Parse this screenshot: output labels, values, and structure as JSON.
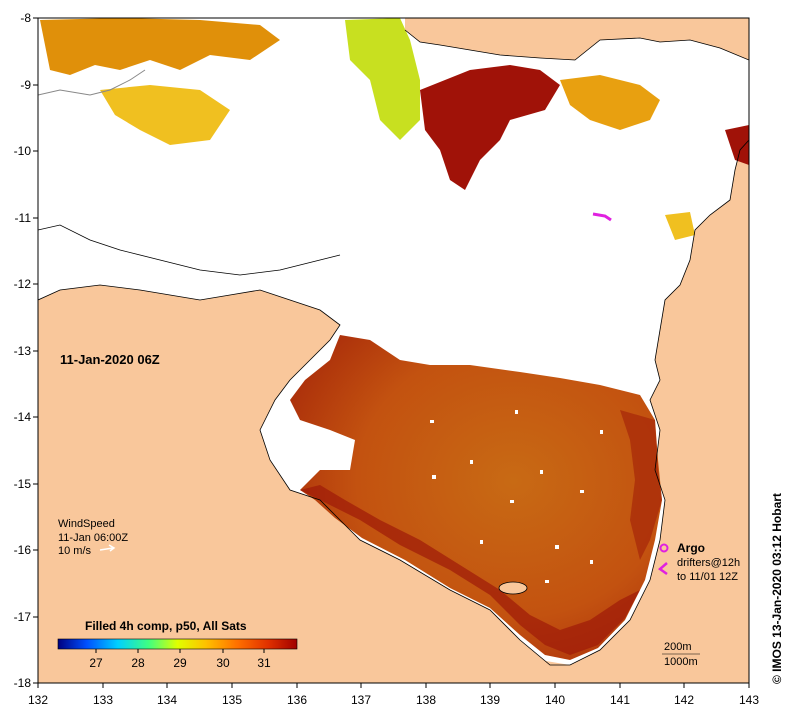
{
  "map": {
    "date_label": "11-Jan-2020 06Z",
    "credit": "© IMOS 13-Jan-2020 03:12 Hobart",
    "lon_ticks": [
      "132",
      "133",
      "134",
      "135",
      "136",
      "137",
      "138",
      "139",
      "140",
      "141",
      "142",
      "143"
    ],
    "lat_ticks": [
      "-8",
      "-9",
      "-10",
      "-11",
      "-12",
      "-13",
      "-14",
      "-15",
      "-16",
      "-17",
      "-18"
    ],
    "colors": {
      "land": "#f9c79b",
      "no_data": "#ffffff",
      "warm_sst": "#c8560a",
      "hot_sst": "#a01208",
      "argo": "#e020e0"
    }
  },
  "wind": {
    "title": "WindSpeed",
    "time": "11-Jan 06:00Z",
    "scale": "10 m/s"
  },
  "argo": {
    "title": "Argo",
    "drifters_line1": "drifters@12h",
    "drifters_line2": "to 11/01 12Z"
  },
  "colorbar": {
    "title": "Filled 4h comp, p50, All Sats",
    "ticks": [
      "27",
      "28",
      "29",
      "30",
      "31"
    ],
    "stops": [
      "#000080",
      "#0050ff",
      "#00d0ff",
      "#40ff80",
      "#e0ff00",
      "#ffc000",
      "#ff7000",
      "#e03000",
      "#a00000"
    ]
  },
  "isobaths": {
    "line1": "200m",
    "line2": "1000m"
  }
}
